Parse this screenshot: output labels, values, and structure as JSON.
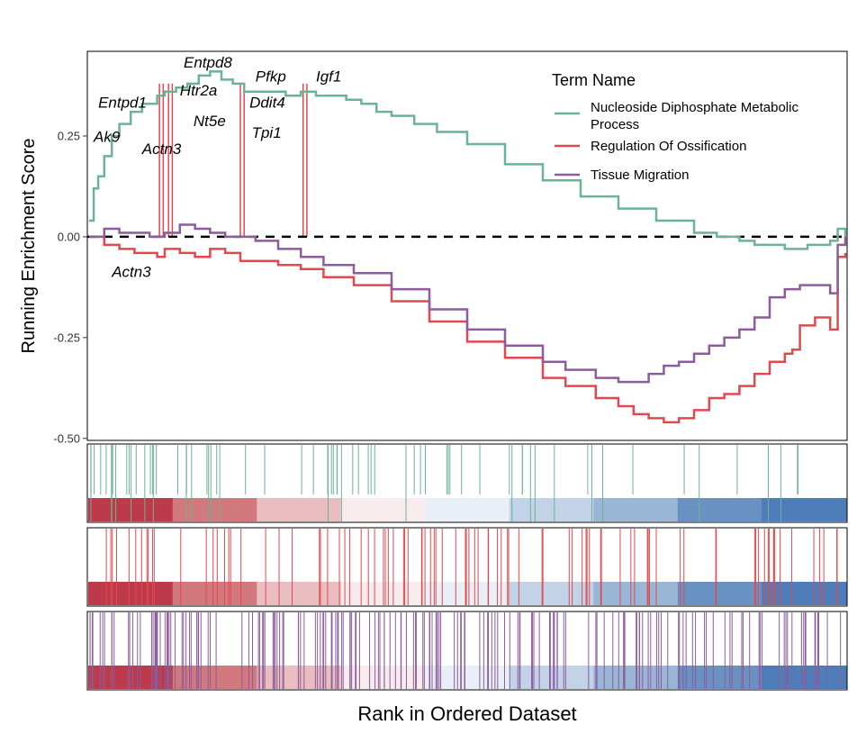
{
  "chart_data": {
    "type": "line",
    "ylabel": "Running Enrichment Score",
    "xlabel": "Rank in Ordered Dataset",
    "ylim": [
      -0.5,
      0.45
    ],
    "yticks": [
      0.25,
      0.0,
      -0.25,
      -0.5
    ],
    "ytick_labels": [
      "0.25",
      "0.00",
      "-0.25",
      "-0.50"
    ],
    "xlim": [
      0,
      1
    ],
    "baseline": 0,
    "legend": {
      "title": "Term Name",
      "position": "top-right",
      "entries": [
        {
          "lines": [
            "Nucleoside Diphosphate Metabolic",
            "Process"
          ],
          "color": "#6BB396"
        },
        {
          "lines": [
            "Regulation Of Ossification"
          ],
          "color": "#E0494F"
        },
        {
          "lines": [
            "Tissue Migration"
          ],
          "color": "#8C5C9C"
        }
      ]
    },
    "series": [
      {
        "name": "Nucleoside Diphosphate Metabolic Process",
        "color": "#6BB396",
        "x": [
          0.0,
          0.006,
          0.012,
          0.02,
          0.03,
          0.04,
          0.055,
          0.07,
          0.09,
          0.1,
          0.115,
          0.13,
          0.145,
          0.16,
          0.175,
          0.19,
          0.205,
          0.22,
          0.24,
          0.26,
          0.28,
          0.3,
          0.32,
          0.34,
          0.36,
          0.38,
          0.4,
          0.43,
          0.46,
          0.5,
          0.55,
          0.6,
          0.65,
          0.7,
          0.75,
          0.8,
          0.83,
          0.86,
          0.88,
          0.9,
          0.92,
          0.94,
          0.95,
          0.96,
          0.98,
          0.99,
          1.0
        ],
        "y": [
          0.04,
          0.12,
          0.15,
          0.2,
          0.25,
          0.28,
          0.31,
          0.33,
          0.35,
          0.36,
          0.37,
          0.38,
          0.4,
          0.41,
          0.39,
          0.38,
          0.36,
          0.36,
          0.36,
          0.35,
          0.36,
          0.35,
          0.35,
          0.34,
          0.33,
          0.31,
          0.3,
          0.28,
          0.26,
          0.23,
          0.18,
          0.14,
          0.1,
          0.07,
          0.04,
          0.01,
          0.0,
          -0.01,
          -0.02,
          -0.02,
          -0.03,
          -0.03,
          -0.02,
          -0.02,
          -0.01,
          0.02,
          0.0
        ]
      },
      {
        "name": "Regulation Of Ossification",
        "color": "#E0494F",
        "x": [
          0.0,
          0.02,
          0.04,
          0.06,
          0.09,
          0.1,
          0.12,
          0.14,
          0.16,
          0.18,
          0.2,
          0.22,
          0.25,
          0.28,
          0.31,
          0.35,
          0.4,
          0.45,
          0.5,
          0.55,
          0.6,
          0.63,
          0.67,
          0.7,
          0.72,
          0.74,
          0.76,
          0.78,
          0.8,
          0.82,
          0.84,
          0.86,
          0.88,
          0.9,
          0.92,
          0.93,
          0.94,
          0.96,
          0.98,
          0.99,
          1.0
        ],
        "y": [
          0.0,
          -0.02,
          -0.03,
          -0.04,
          -0.05,
          -0.03,
          -0.04,
          -0.05,
          -0.03,
          -0.04,
          -0.06,
          -0.06,
          -0.07,
          -0.08,
          -0.1,
          -0.12,
          -0.16,
          -0.21,
          -0.26,
          -0.3,
          -0.35,
          -0.37,
          -0.4,
          -0.42,
          -0.44,
          -0.45,
          -0.46,
          -0.45,
          -0.43,
          -0.4,
          -0.39,
          -0.37,
          -0.34,
          -0.31,
          -0.29,
          -0.28,
          -0.22,
          -0.2,
          -0.23,
          -0.05,
          -0.04
        ]
      },
      {
        "name": "Tissue Migration",
        "color": "#8C5C9C",
        "x": [
          0.0,
          0.02,
          0.04,
          0.06,
          0.08,
          0.1,
          0.12,
          0.14,
          0.16,
          0.18,
          0.2,
          0.22,
          0.25,
          0.28,
          0.31,
          0.35,
          0.4,
          0.45,
          0.5,
          0.55,
          0.6,
          0.63,
          0.67,
          0.7,
          0.72,
          0.74,
          0.76,
          0.78,
          0.8,
          0.82,
          0.84,
          0.86,
          0.88,
          0.9,
          0.92,
          0.94,
          0.96,
          0.98,
          0.99,
          1.0
        ],
        "y": [
          0.0,
          0.02,
          0.01,
          0.01,
          0.0,
          0.01,
          0.03,
          0.02,
          0.01,
          0.0,
          0.0,
          -0.01,
          -0.03,
          -0.05,
          -0.07,
          -0.09,
          -0.13,
          -0.18,
          -0.23,
          -0.27,
          -0.31,
          -0.33,
          -0.35,
          -0.36,
          -0.36,
          -0.34,
          -0.32,
          -0.31,
          -0.29,
          -0.27,
          -0.25,
          -0.23,
          -0.2,
          -0.15,
          -0.13,
          -0.12,
          -0.12,
          -0.14,
          -0.02,
          0.0
        ]
      }
    ],
    "gene_labels": [
      {
        "text": "Entpd8",
        "x": 0.125,
        "y": 0.42
      },
      {
        "text": "Htr2a",
        "x": 0.12,
        "y": 0.35
      },
      {
        "text": "Pfkp",
        "x": 0.22,
        "y": 0.385
      },
      {
        "text": "Igf1",
        "x": 0.3,
        "y": 0.385
      },
      {
        "text": "Entpd1",
        "x": 0.012,
        "y": 0.32
      },
      {
        "text": "Nt5e",
        "x": 0.138,
        "y": 0.275
      },
      {
        "text": "Ddit4",
        "x": 0.212,
        "y": 0.32
      },
      {
        "text": "Ak9",
        "x": 0.006,
        "y": 0.235
      },
      {
        "text": "Tpi1",
        "x": 0.215,
        "y": 0.245
      },
      {
        "text": "Actn3",
        "x": 0.07,
        "y": 0.205
      },
      {
        "text": "Actn3",
        "x": 0.03,
        "y": -0.1
      }
    ],
    "gene_vlines": [
      {
        "x": 0.093,
        "color": "#E0494F"
      },
      {
        "x": 0.098,
        "color": "#E0494F"
      },
      {
        "x": 0.105,
        "color": "#E0494F"
      },
      {
        "x": 0.11,
        "color": "#E0494F"
      },
      {
        "x": 0.2,
        "color": "#E0494F"
      },
      {
        "x": 0.205,
        "color": "#E0494F"
      },
      {
        "x": 0.283,
        "color": "#E0494F"
      },
      {
        "x": 0.288,
        "color": "#E0494F"
      }
    ],
    "hit_panels": [
      {
        "name": "Nucleoside Diphosphate Metabolic Process",
        "color": "#6BB396"
      },
      {
        "name": "Regulation Of Ossification",
        "color": "#E0494F"
      },
      {
        "name": "Tissue Migration",
        "color": "#8C5C9C"
      }
    ],
    "rank_gradient": [
      "#B2182B",
      "#C96166",
      "#E6B3B6",
      "#F6E7EA",
      "#E5ECF4",
      "#B7CBE3",
      "#88A9CF",
      "#4F7FB8",
      "#2F67AE"
    ]
  }
}
